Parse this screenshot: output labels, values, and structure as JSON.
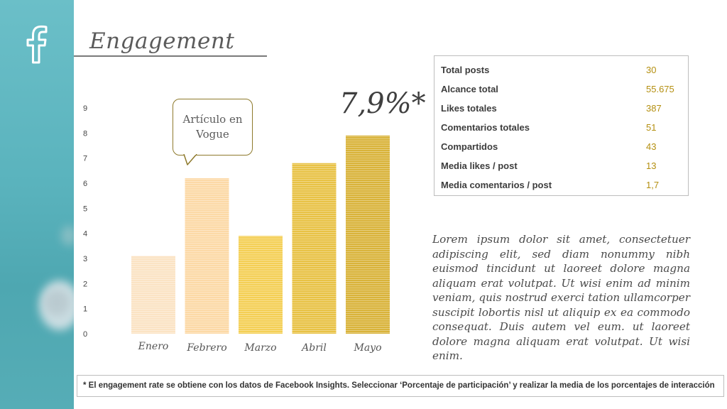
{
  "slide": {
    "title": "Engagement",
    "callout": "Artículo en Vogue",
    "highlight": "7,9%*",
    "description": "Lorem ipsum dolor sit amet, consectetuer adipiscing elit, sed diam nonummy nibh euismod tincidunt ut laoreet dolore magna aliquam erat volutpat. Ut wisi enim ad minim veniam, quis nostrud exerci tation ullamcorper suscipit lobortis nisl ut aliquip ex ea commodo consequat. Duis autem vel eum. ut laoreet dolore magna aliquam erat volutpat. Ut wisi enim.",
    "footnote": "* El engagement rate se obtiene con los datos de Facebook Insights. Seleccionar ‘Porcentaje de participación’ y realizar la media de los porcentajes de interacción",
    "icons": {
      "social": "facebook-icon"
    }
  },
  "stats": [
    {
      "label": "Total posts",
      "value": "30"
    },
    {
      "label": "Alcance total",
      "value": "55.675"
    },
    {
      "label": "Likes totales",
      "value": "387"
    },
    {
      "label": "Comentarios totales",
      "value": "51"
    },
    {
      "label": "Compartidos",
      "value": "43"
    },
    {
      "label": "Media likes / post",
      "value": "13"
    },
    {
      "label": "Media comentarios / post",
      "value": "1,7"
    }
  ],
  "colors": {
    "accent": "#b48f10",
    "side_strip": "#5ab3bd",
    "bars": [
      "#fbe3c4",
      "#fcd9a6",
      "#f4cf55",
      "#e8c245",
      "#d9b33a"
    ]
  },
  "chart_data": {
    "type": "bar",
    "categories": [
      "Enero",
      "Febrero",
      "Marzo",
      "Abril",
      "Mayo"
    ],
    "values": [
      3.1,
      6.2,
      3.9,
      6.8,
      7.9
    ],
    "ylim": [
      0,
      9
    ],
    "yticks": [
      0,
      1,
      2,
      3,
      4,
      5,
      6,
      7,
      8,
      9
    ],
    "grid": false,
    "legend": "none"
  }
}
